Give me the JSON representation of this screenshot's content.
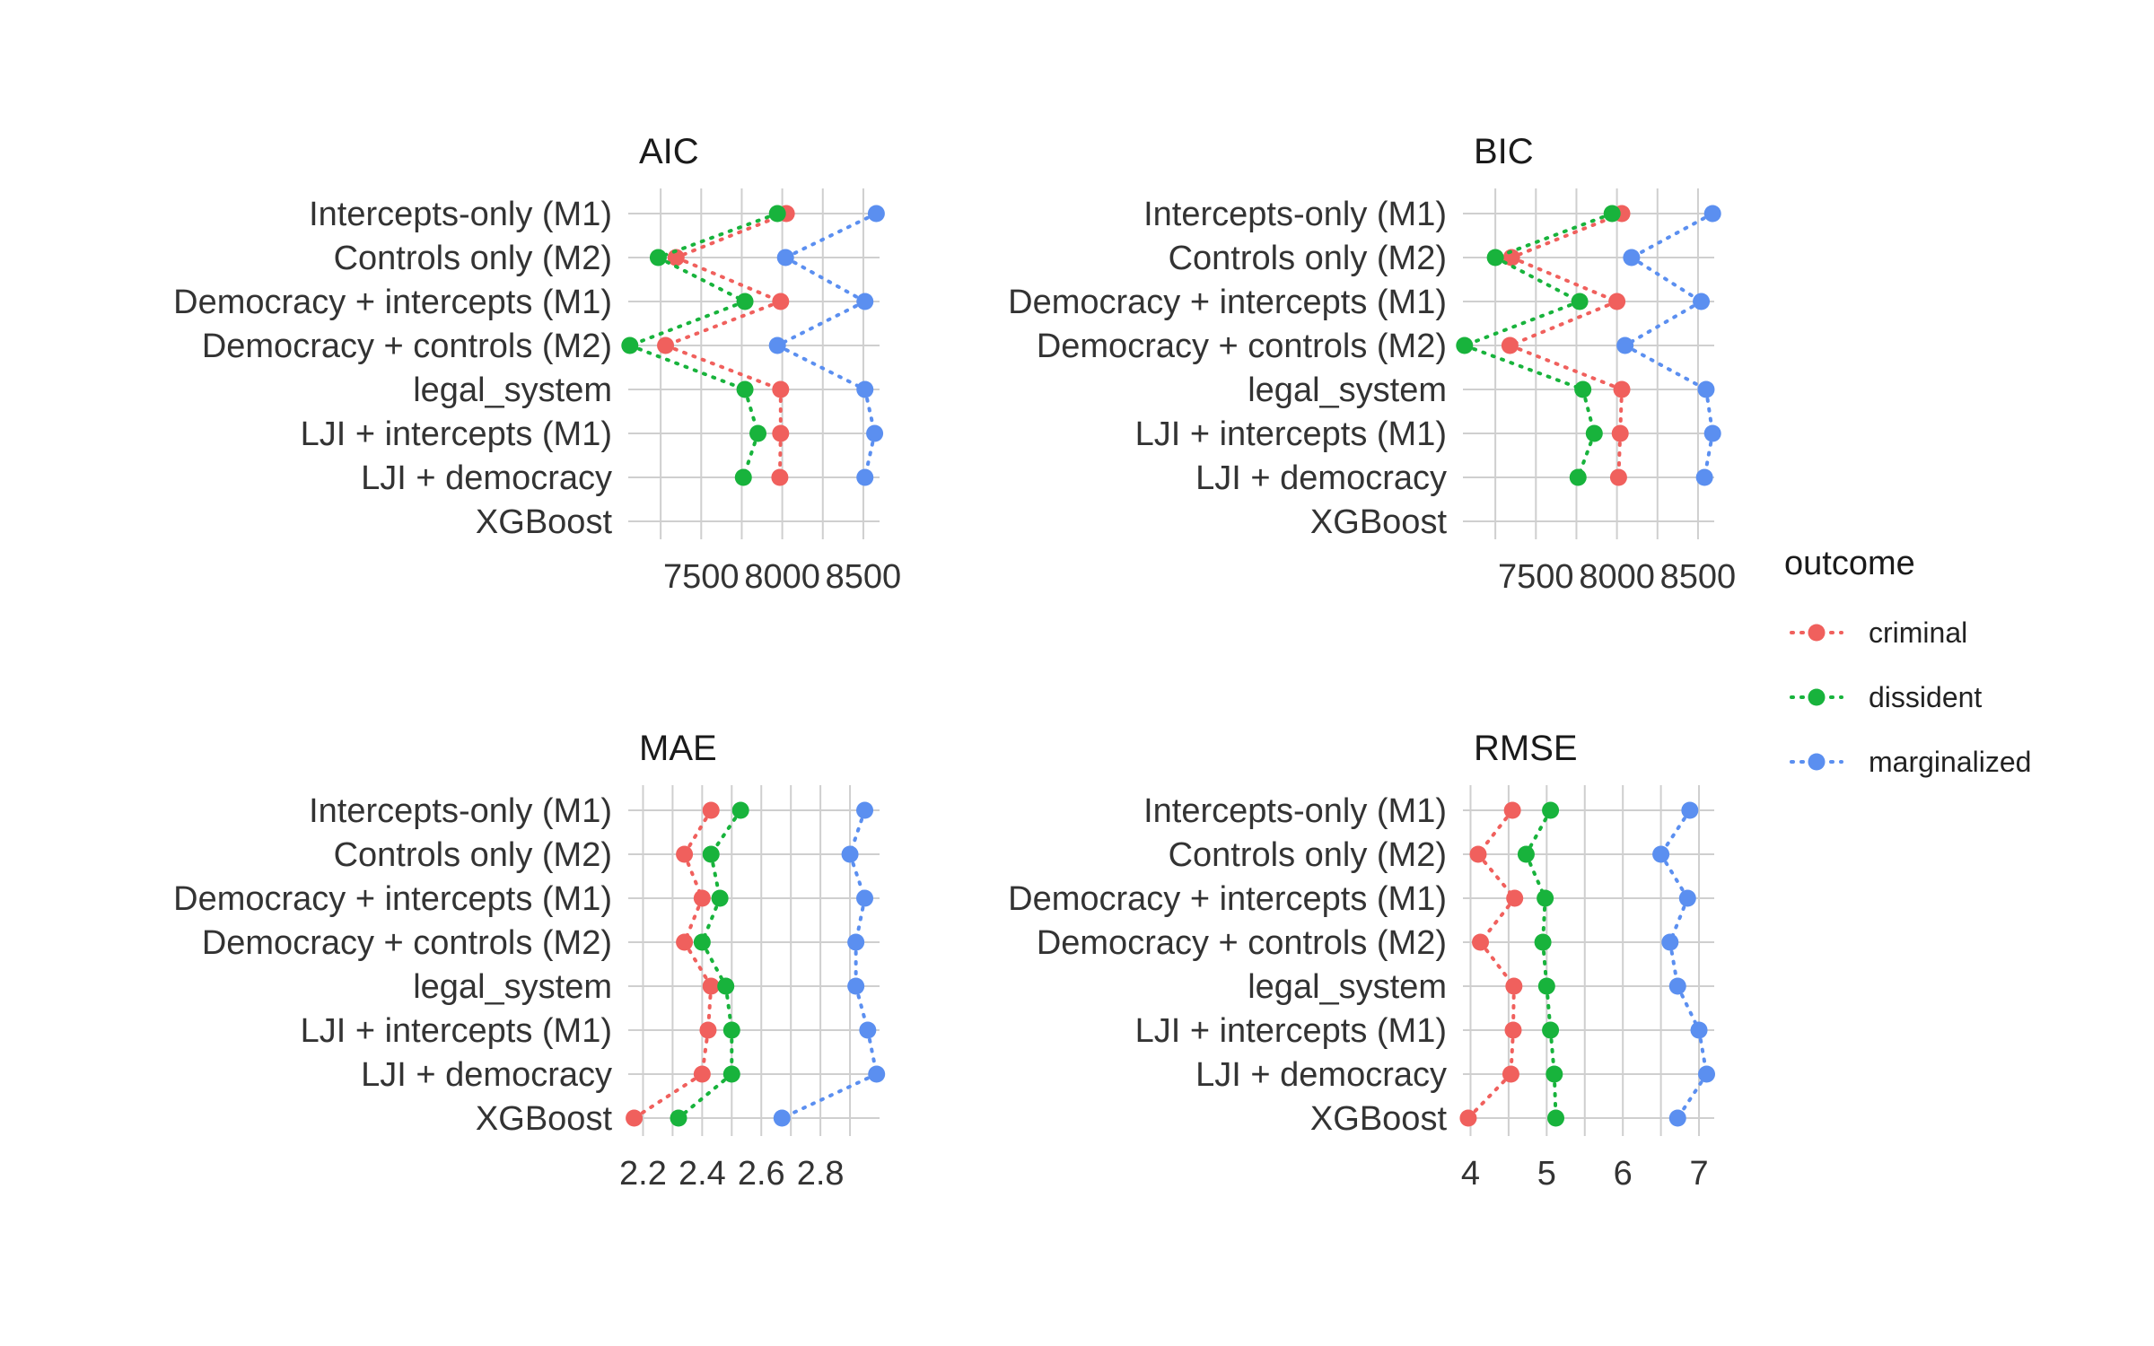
{
  "legend": {
    "title": "outcome",
    "items": [
      {
        "label": "criminal",
        "color": "#f0605d"
      },
      {
        "label": "dissident",
        "color": "#18b33c"
      },
      {
        "label": "marginalized",
        "color": "#5b8ff0"
      }
    ]
  },
  "chart_data": [
    {
      "type": "scatter",
      "title": "AIC",
      "categories": [
        "Intercepts-only (M1)",
        "Controls only (M2)",
        "Democracy + intercepts (M1)",
        "Democracy + controls (M2)",
        "legal_system",
        "LJI + intercepts (M1)",
        "LJI + democracy",
        "XGBoost"
      ],
      "xlim": [
        7050,
        8600
      ],
      "xticks": [
        7500,
        8000,
        8500
      ],
      "xtick_labels": [
        "7500",
        "8000",
        "8500"
      ],
      "series": [
        {
          "name": "criminal",
          "values": [
            8025,
            7345,
            7990,
            7280,
            7990,
            7990,
            7985,
            null
          ]
        },
        {
          "name": "dissident",
          "values": [
            7970,
            7235,
            7770,
            7060,
            7770,
            7850,
            7760,
            null
          ]
        },
        {
          "name": "marginalized",
          "values": [
            8580,
            8020,
            8510,
            7970,
            8510,
            8570,
            8510,
            null
          ]
        }
      ]
    },
    {
      "type": "scatter",
      "title": "BIC",
      "categories": [
        "Intercepts-only (M1)",
        "Controls only (M2)",
        "Democracy + intercepts (M1)",
        "Democracy + controls (M2)",
        "legal_system",
        "LJI + intercepts (M1)",
        "LJI + democracy",
        "XGBoost"
      ],
      "xlim": [
        7050,
        8600
      ],
      "xticks": [
        7500,
        8000,
        8500
      ],
      "xtick_labels": [
        "7500",
        "8000",
        "8500"
      ],
      "series": [
        {
          "name": "criminal",
          "values": [
            8030,
            7350,
            8000,
            7340,
            8030,
            8020,
            8010,
            null
          ]
        },
        {
          "name": "dissident",
          "values": [
            7970,
            7250,
            7770,
            7060,
            7790,
            7860,
            7760,
            null
          ]
        },
        {
          "name": "marginalized",
          "values": [
            8590,
            8090,
            8520,
            8050,
            8550,
            8590,
            8540,
            null
          ]
        }
      ]
    },
    {
      "type": "scatter",
      "title": "MAE",
      "categories": [
        "Intercepts-only (M1)",
        "Controls only (M2)",
        "Democracy + intercepts (M1)",
        "Democracy + controls (M2)",
        "legal_system",
        "LJI + intercepts (M1)",
        "LJI + democracy",
        "XGBoost"
      ],
      "xlim": [
        2.15,
        3.0
      ],
      "xticks": [
        2.2,
        2.4,
        2.6,
        2.8
      ],
      "xtick_labels": [
        "2.2",
        "2.4",
        "2.6",
        "2.8"
      ],
      "series": [
        {
          "name": "criminal",
          "values": [
            2.43,
            2.34,
            2.4,
            2.34,
            2.43,
            2.42,
            2.4,
            2.17
          ]
        },
        {
          "name": "dissident",
          "values": [
            2.53,
            2.43,
            2.46,
            2.4,
            2.48,
            2.5,
            2.5,
            2.32
          ]
        },
        {
          "name": "marginalized",
          "values": [
            2.95,
            2.9,
            2.95,
            2.92,
            2.92,
            2.96,
            2.99,
            2.67
          ]
        }
      ]
    },
    {
      "type": "scatter",
      "title": "RMSE",
      "categories": [
        "Intercepts-only (M1)",
        "Controls only (M2)",
        "Democracy + intercepts (M1)",
        "Democracy + controls (M2)",
        "legal_system",
        "LJI + intercepts (M1)",
        "LJI + democracy",
        "XGBoost"
      ],
      "xlim": [
        3.9,
        7.2
      ],
      "xticks": [
        4,
        5,
        6,
        7
      ],
      "xtick_labels": [
        "4",
        "5",
        "6",
        "7"
      ],
      "series": [
        {
          "name": "criminal",
          "values": [
            4.55,
            4.1,
            4.58,
            4.13,
            4.57,
            4.56,
            4.53,
            3.97
          ]
        },
        {
          "name": "dissident",
          "values": [
            5.05,
            4.73,
            4.98,
            4.95,
            5.0,
            5.05,
            5.1,
            5.12
          ]
        },
        {
          "name": "marginalized",
          "values": [
            6.88,
            6.5,
            6.85,
            6.62,
            6.72,
            7.0,
            7.1,
            6.72
          ]
        }
      ]
    }
  ]
}
